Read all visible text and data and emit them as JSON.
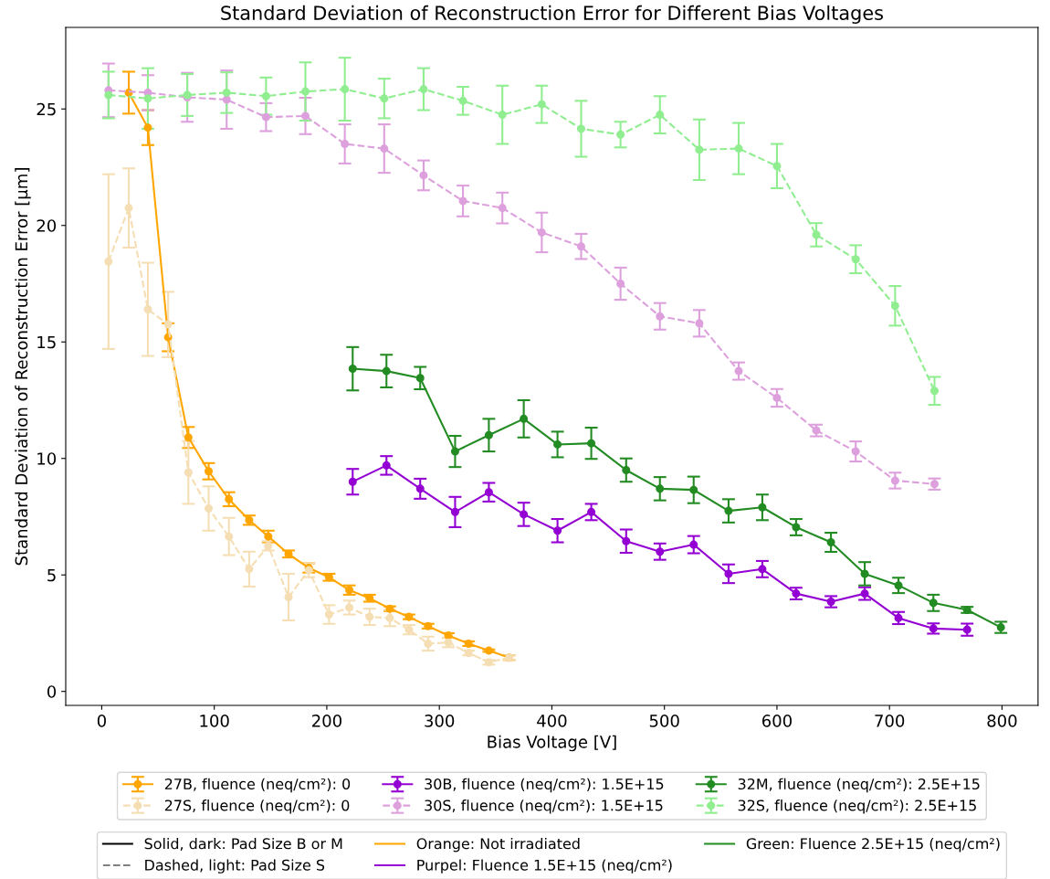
{
  "chart_data": {
    "type": "line",
    "title": "Standard Deviation of Reconstruction Error for Different Bias Voltages",
    "xlabel": "Bias Voltage [V]",
    "ylabel": "Standard Deviation of Reconstruction Error [µm]",
    "xlim": [
      -32,
      832
    ],
    "ylim": [
      -0.6,
      28.5
    ],
    "xticks": [
      0,
      100,
      200,
      300,
      400,
      500,
      600,
      700,
      800
    ],
    "yticks": [
      0,
      5,
      10,
      15,
      20,
      25
    ],
    "grid": false,
    "legend": "bottom",
    "marker": "circle",
    "series": [
      {
        "name": "27B, fluence (neq/cm²): 0",
        "color": "#ffa500",
        "line_style": "solid",
        "x": [
          24,
          41,
          59,
          77,
          95,
          113,
          131,
          148,
          166,
          184,
          202,
          220,
          238,
          256,
          273,
          290,
          308,
          326,
          344,
          362
        ],
        "values": [
          25.7,
          24.2,
          15.2,
          10.9,
          9.45,
          8.25,
          7.35,
          6.65,
          5.9,
          5.3,
          4.9,
          4.35,
          4.0,
          3.55,
          3.2,
          2.8,
          2.4,
          2.05,
          1.75,
          1.45
        ],
        "errors": [
          0.9,
          0.75,
          0.6,
          0.45,
          0.35,
          0.3,
          0.2,
          0.25,
          0.15,
          0.2,
          0.15,
          0.2,
          0.15,
          0.1,
          0.1,
          0.1,
          0.1,
          0.1,
          0.05,
          0.1
        ]
      },
      {
        "name": "27S, fluence (neq/cm²): 0",
        "color": "#f5deb3",
        "line_style": "dashed",
        "x": [
          6,
          24,
          41,
          59,
          77,
          95,
          113,
          131,
          148,
          166,
          184,
          202,
          220,
          238,
          256,
          273,
          290,
          308,
          326,
          344,
          362
        ],
        "values": [
          18.45,
          20.75,
          16.4,
          15.75,
          9.4,
          7.85,
          6.65,
          5.25,
          6.25,
          4.05,
          5.2,
          3.3,
          3.6,
          3.2,
          3.15,
          2.65,
          2.05,
          2.1,
          1.65,
          1.25,
          1.45
        ],
        "errors": [
          3.75,
          1.7,
          2.0,
          1.4,
          1.35,
          0.95,
          0.8,
          0.75,
          0.2,
          1.0,
          0.3,
          0.4,
          0.3,
          0.35,
          0.35,
          0.2,
          0.3,
          0.2,
          0.1,
          0.1,
          0.1
        ]
      },
      {
        "name": "30B, fluence (neq/cm²): 1.5E+15",
        "color": "#9400d3",
        "line_style": "solid",
        "x": [
          223,
          253,
          283,
          314,
          344,
          375,
          405,
          435,
          466,
          496,
          526,
          557,
          587,
          617,
          648,
          678,
          708,
          739,
          769
        ],
        "values": [
          9.0,
          9.7,
          8.7,
          7.7,
          8.55,
          7.6,
          6.9,
          7.7,
          6.45,
          6.0,
          6.3,
          5.05,
          5.25,
          4.2,
          3.85,
          4.2,
          3.15,
          2.7,
          2.65
        ],
        "errors": [
          0.55,
          0.4,
          0.43,
          0.65,
          0.4,
          0.5,
          0.5,
          0.35,
          0.5,
          0.35,
          0.37,
          0.4,
          0.35,
          0.25,
          0.24,
          0.27,
          0.26,
          0.22,
          0.26
        ]
      },
      {
        "name": "30S, fluence (neq/cm²): 1.5E+15",
        "color": "#dda0dd",
        "line_style": "dashed",
        "x": [
          6,
          41,
          76,
          111,
          146,
          181,
          216,
          251,
          286,
          321,
          356,
          391,
          426,
          461,
          496,
          531,
          566,
          600,
          635,
          670,
          705,
          740
        ],
        "values": [
          25.8,
          25.7,
          25.5,
          25.4,
          24.65,
          24.7,
          23.5,
          23.3,
          22.15,
          21.05,
          20.75,
          19.7,
          19.1,
          17.5,
          16.1,
          15.8,
          13.75,
          12.6,
          11.2,
          10.3,
          9.05,
          8.9
        ],
        "errors": [
          1.15,
          0.75,
          1.05,
          1.25,
          0.6,
          0.78,
          0.84,
          1.04,
          0.64,
          0.66,
          0.66,
          0.85,
          0.54,
          0.69,
          0.57,
          0.57,
          0.37,
          0.38,
          0.25,
          0.43,
          0.34,
          0.24
        ]
      },
      {
        "name": "32M, fluence (neq/cm²): 2.5E+15",
        "color": "#228b22",
        "line_style": "solid",
        "x": [
          223,
          253,
          283,
          314,
          344,
          375,
          405,
          435,
          466,
          496,
          526,
          557,
          587,
          617,
          648,
          678,
          708,
          739,
          769,
          799
        ],
        "values": [
          13.85,
          13.75,
          13.45,
          10.3,
          11.0,
          11.7,
          10.6,
          10.65,
          9.5,
          8.7,
          8.65,
          7.75,
          7.9,
          7.05,
          6.4,
          5.05,
          4.55,
          3.8,
          3.5,
          2.75
        ],
        "errors": [
          0.93,
          0.7,
          0.48,
          0.67,
          0.7,
          0.8,
          0.55,
          0.67,
          0.5,
          0.5,
          0.57,
          0.5,
          0.55,
          0.35,
          0.41,
          0.5,
          0.33,
          0.35,
          0.13,
          0.24
        ]
      },
      {
        "name": "32S, fluence (neq/cm²): 2.5E+15",
        "color": "#90ee90",
        "line_style": "dashed",
        "x": [
          6,
          41,
          76,
          111,
          146,
          181,
          216,
          251,
          286,
          321,
          356,
          391,
          426,
          461,
          496,
          531,
          566,
          600,
          635,
          670,
          705,
          740
        ],
        "values": [
          25.6,
          25.45,
          25.6,
          25.7,
          25.55,
          25.75,
          25.85,
          25.45,
          25.85,
          25.35,
          24.75,
          25.2,
          24.15,
          23.9,
          24.75,
          23.25,
          23.3,
          22.55,
          19.6,
          18.55,
          16.55,
          12.9
        ],
        "errors": [
          1.0,
          1.3,
          0.9,
          0.87,
          0.8,
          1.25,
          1.35,
          0.85,
          0.9,
          0.6,
          1.25,
          0.8,
          1.2,
          0.55,
          0.8,
          1.3,
          1.1,
          0.95,
          0.5,
          0.6,
          0.85,
          0.6
        ]
      },
      {
        "name": "Solid, dark: Pad Size B or M",
        "color": "#000000",
        "line_style": "solid"
      },
      {
        "name": "Dashed, light: Pad Size S",
        "color": "#808080",
        "line_style": "dashed"
      },
      {
        "name": "Orange: Not irradiated",
        "color": "#ffa500",
        "line_style": "solid"
      },
      {
        "name": "Purpel: Fluence 1.5E+15 (neq/cm²)",
        "color": "#9400d3",
        "line_style": "solid"
      },
      {
        "name": "Green: Fluence 2.5E+15 (neq/cm²)",
        "color": "#228b22",
        "line_style": "solid"
      }
    ]
  }
}
